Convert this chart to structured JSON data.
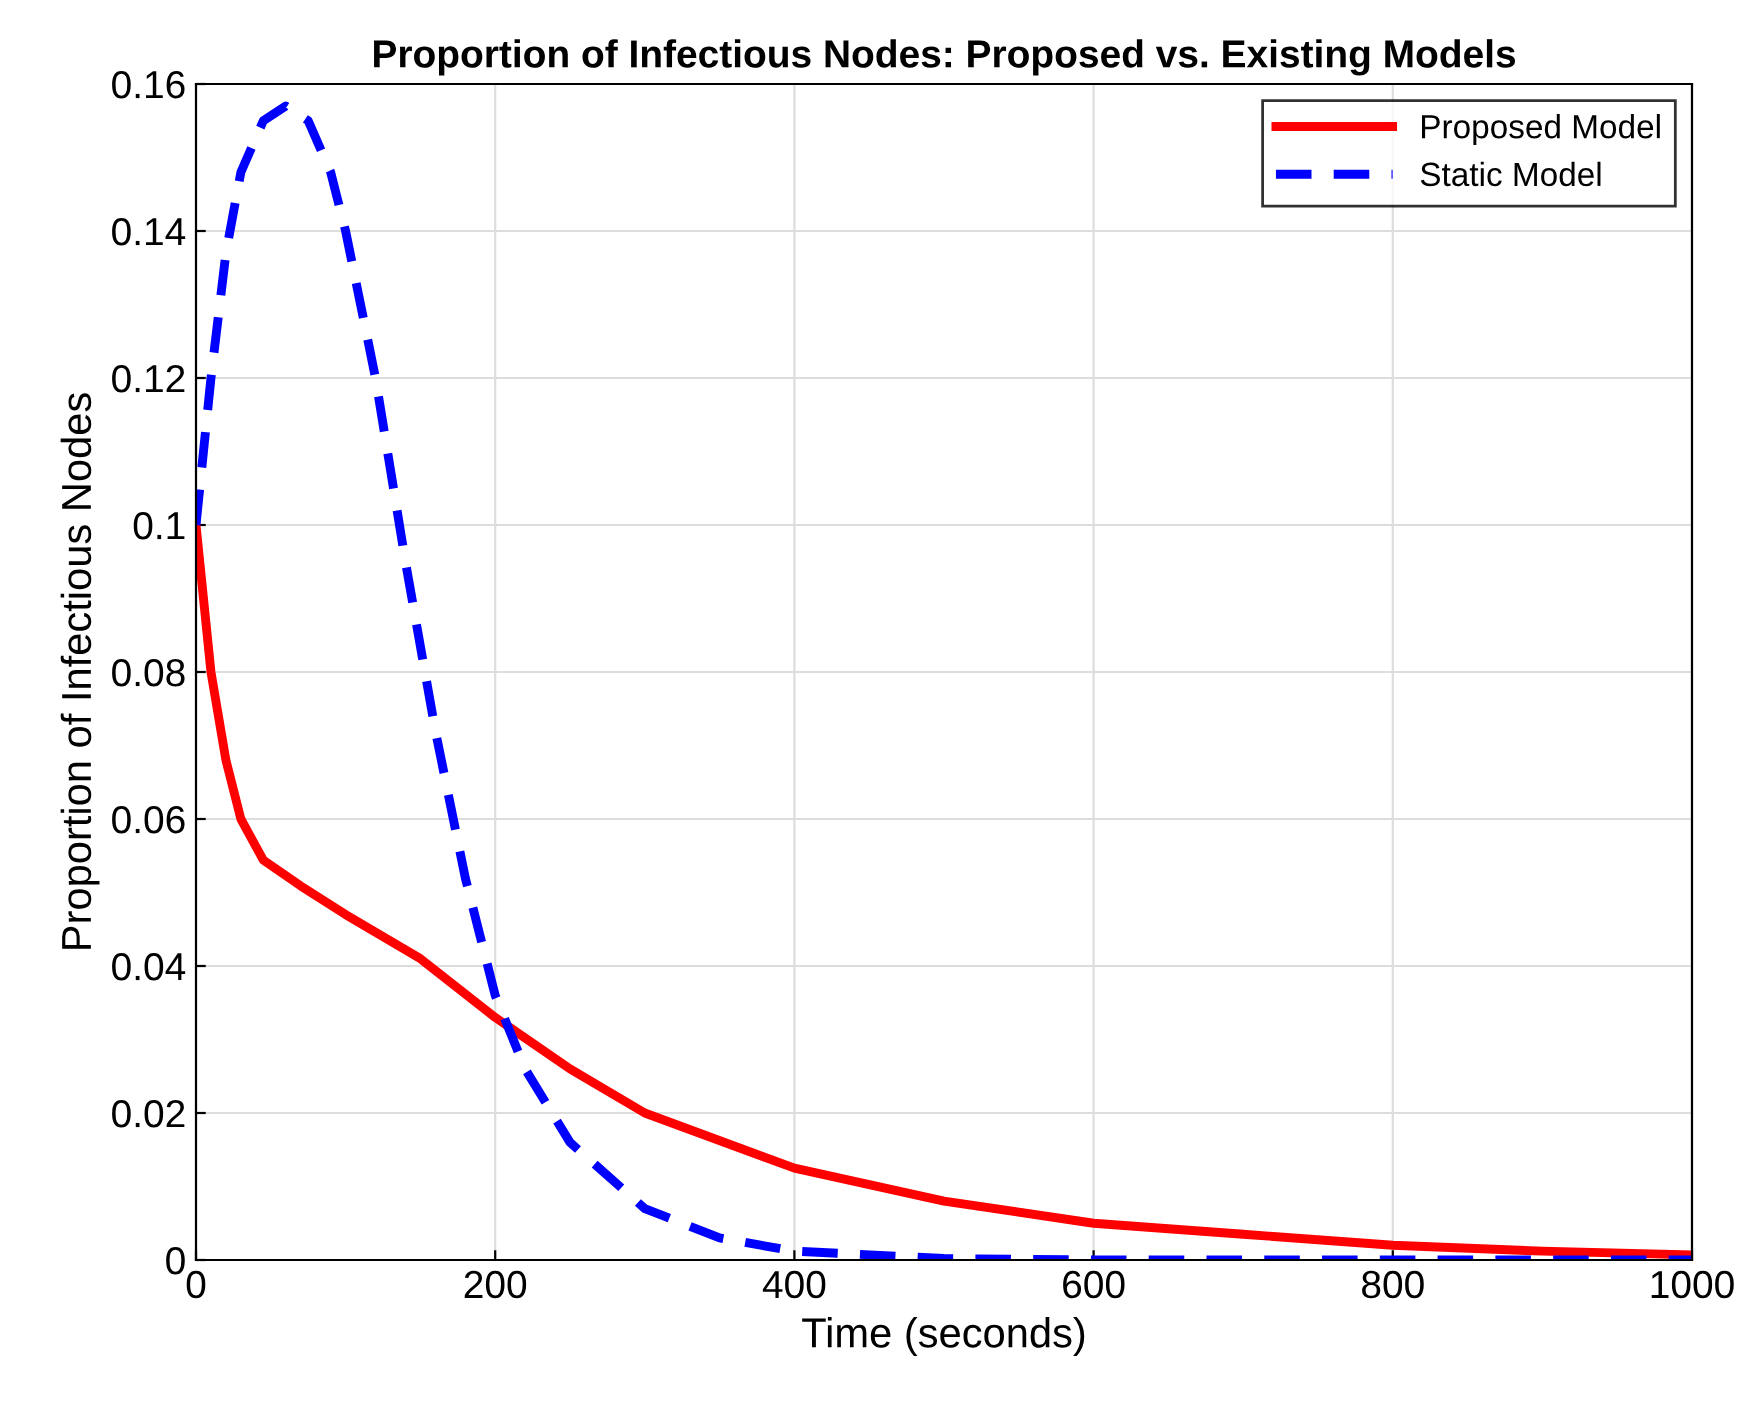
{
  "chart_data": {
    "type": "line",
    "title": "Proportion of Infectious Nodes: Proposed vs. Existing Models",
    "xlabel": "Time (seconds)",
    "ylabel": "Proportion of Infectious Nodes",
    "xlim": [
      0,
      1000
    ],
    "ylim": [
      0,
      0.16
    ],
    "xticks": [
      0,
      200,
      400,
      600,
      800,
      1000
    ],
    "yticks": [
      0,
      0.02,
      0.04,
      0.06,
      0.08,
      0.1,
      0.12,
      0.14,
      0.16
    ],
    "grid": true,
    "legend": "top right",
    "series": [
      {
        "name": "Proposed Model",
        "color": "#ff0000",
        "line_style": "solid",
        "x": [
          0,
          10,
          20,
          30,
          45,
          70,
          100,
          150,
          200,
          250,
          300,
          400,
          500,
          600,
          700,
          800,
          900,
          1000
        ],
        "values": [
          0.1,
          0.08,
          0.068,
          0.06,
          0.0544,
          0.0509,
          0.047,
          0.041,
          0.033,
          0.026,
          0.02,
          0.0125,
          0.008,
          0.005,
          0.0035,
          0.002,
          0.0012,
          0.0007
        ]
      },
      {
        "name": "Static Model",
        "color": "#0000ff",
        "line_style": "dashed",
        "x": [
          0,
          10,
          20,
          30,
          45,
          60,
          75,
          90,
          100,
          120,
          140,
          160,
          180,
          200,
          220,
          250,
          300,
          350,
          400,
          500,
          600,
          800,
          1000
        ],
        "values": [
          0.1,
          0.12,
          0.137,
          0.148,
          0.155,
          0.157,
          0.155,
          0.148,
          0.14,
          0.12,
          0.095,
          0.072,
          0.052,
          0.036,
          0.026,
          0.016,
          0.007,
          0.003,
          0.0012,
          0.0002,
          0,
          0,
          0
        ]
      }
    ]
  }
}
